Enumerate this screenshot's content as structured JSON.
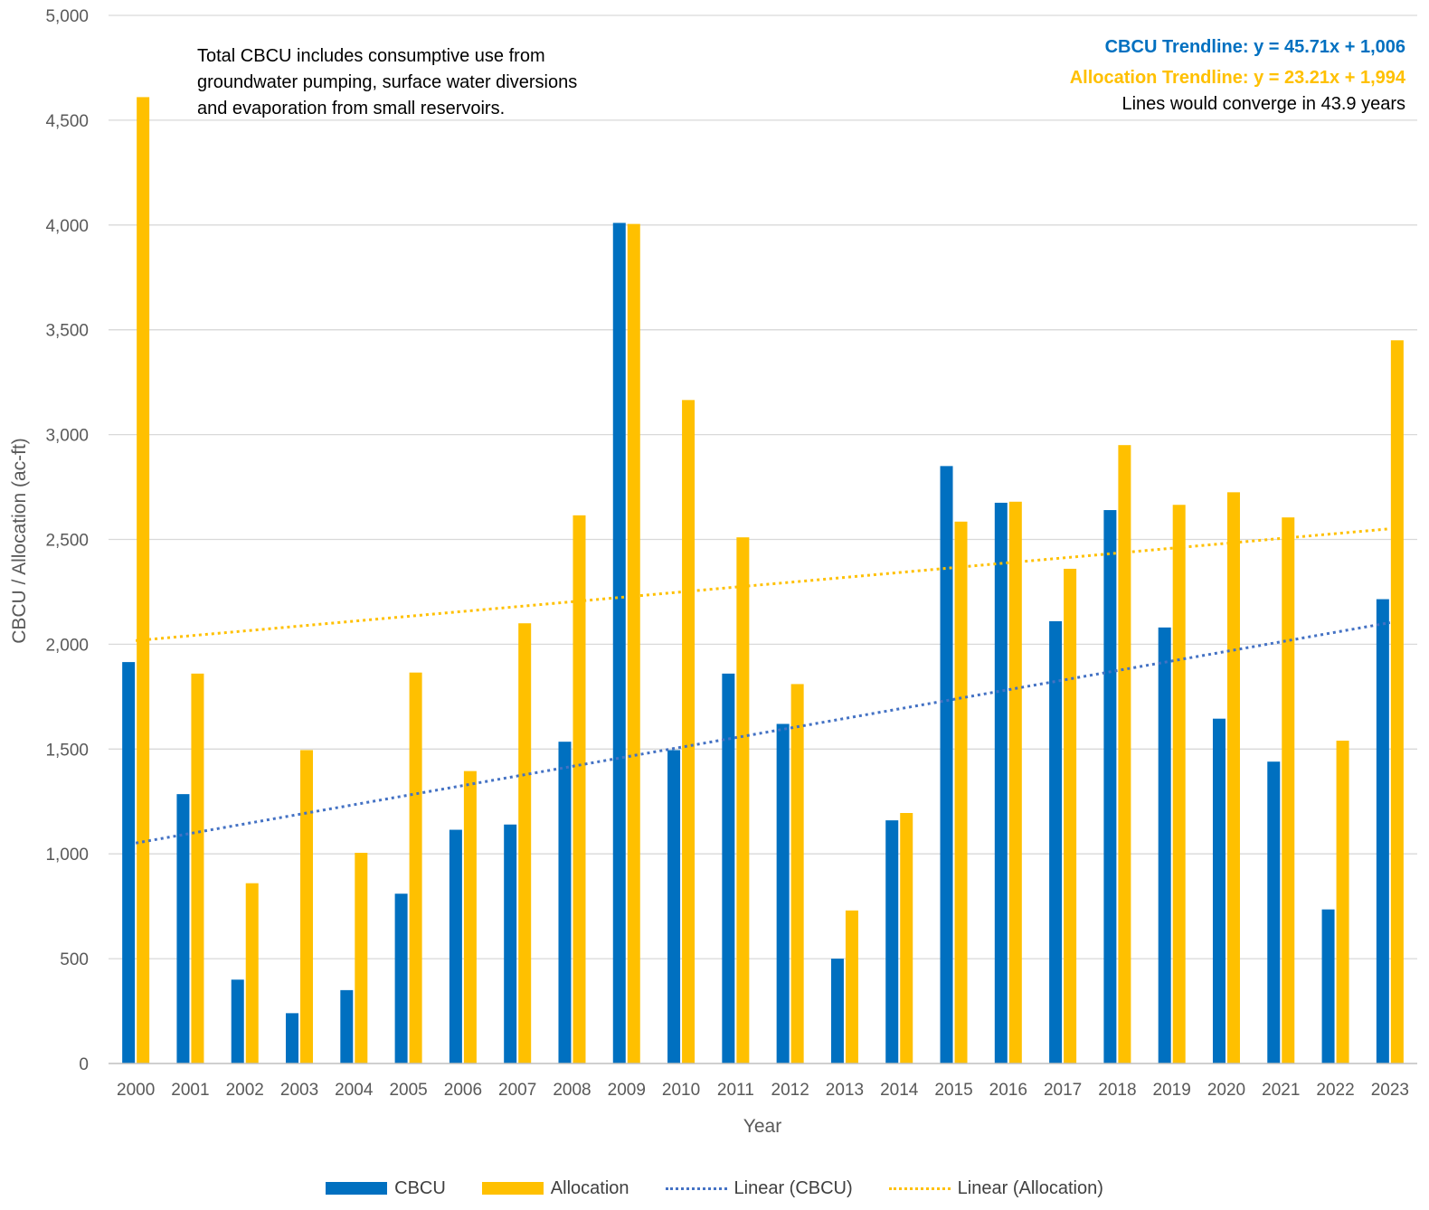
{
  "colors": {
    "cbcu": "#0070c0",
    "allocation": "#ffc000",
    "trend_cbcu": "#4472c4",
    "trend_alloc": "#ffc000"
  },
  "chart_data": {
    "type": "bar",
    "xlabel": "Year",
    "ylabel": "CBCU / Allocation (ac-ft)",
    "ylim": [
      0,
      5000
    ],
    "yticks": [
      0,
      500,
      1000,
      1500,
      2000,
      2500,
      3000,
      3500,
      4000,
      4500,
      5000
    ],
    "ytick_labels": [
      "0",
      "500",
      "1,000",
      "1,500",
      "2,000",
      "2,500",
      "3,000",
      "3,500",
      "4,000",
      "4,500",
      "5,000"
    ],
    "grid": "horizontal",
    "legend_position": "bottom",
    "categories": [
      "2000",
      "2001",
      "2002",
      "2003",
      "2004",
      "2005",
      "2006",
      "2007",
      "2008",
      "2009",
      "2010",
      "2011",
      "2012",
      "2013",
      "2014",
      "2015",
      "2016",
      "2017",
      "2018",
      "2019",
      "2020",
      "2021",
      "2022",
      "2023"
    ],
    "series": [
      {
        "name": "CBCU",
        "values": [
          1915,
          1285,
          400,
          240,
          350,
          810,
          1115,
          1140,
          1535,
          4010,
          1495,
          1860,
          1620,
          500,
          1160,
          2850,
          2675,
          2110,
          2640,
          2080,
          1645,
          1440,
          735,
          2215
        ]
      },
      {
        "name": "Allocation",
        "values": [
          4610,
          1860,
          860,
          1495,
          1005,
          1865,
          1395,
          2100,
          2615,
          4005,
          3165,
          2510,
          1810,
          730,
          1195,
          2585,
          2680,
          2360,
          2950,
          2665,
          2725,
          2605,
          1540,
          3450
        ]
      }
    ],
    "trendlines": [
      {
        "name": "Linear (CBCU)",
        "slope": 45.71,
        "intercept": 1006
      },
      {
        "name": "Linear (Allocation)",
        "slope": 23.21,
        "intercept": 1994
      }
    ],
    "annotations": {
      "note": "Total CBCU includes consumptive use from groundwater pumping, surface water diversions and evaporation from small reservoirs.",
      "cbcu_equation": "CBCU Trendline: y = 45.71x + 1,006",
      "allocation_equation": "Allocation Trendline: y = 23.21x + 1,994",
      "convergence": "Lines would converge in 43.9 years"
    }
  }
}
